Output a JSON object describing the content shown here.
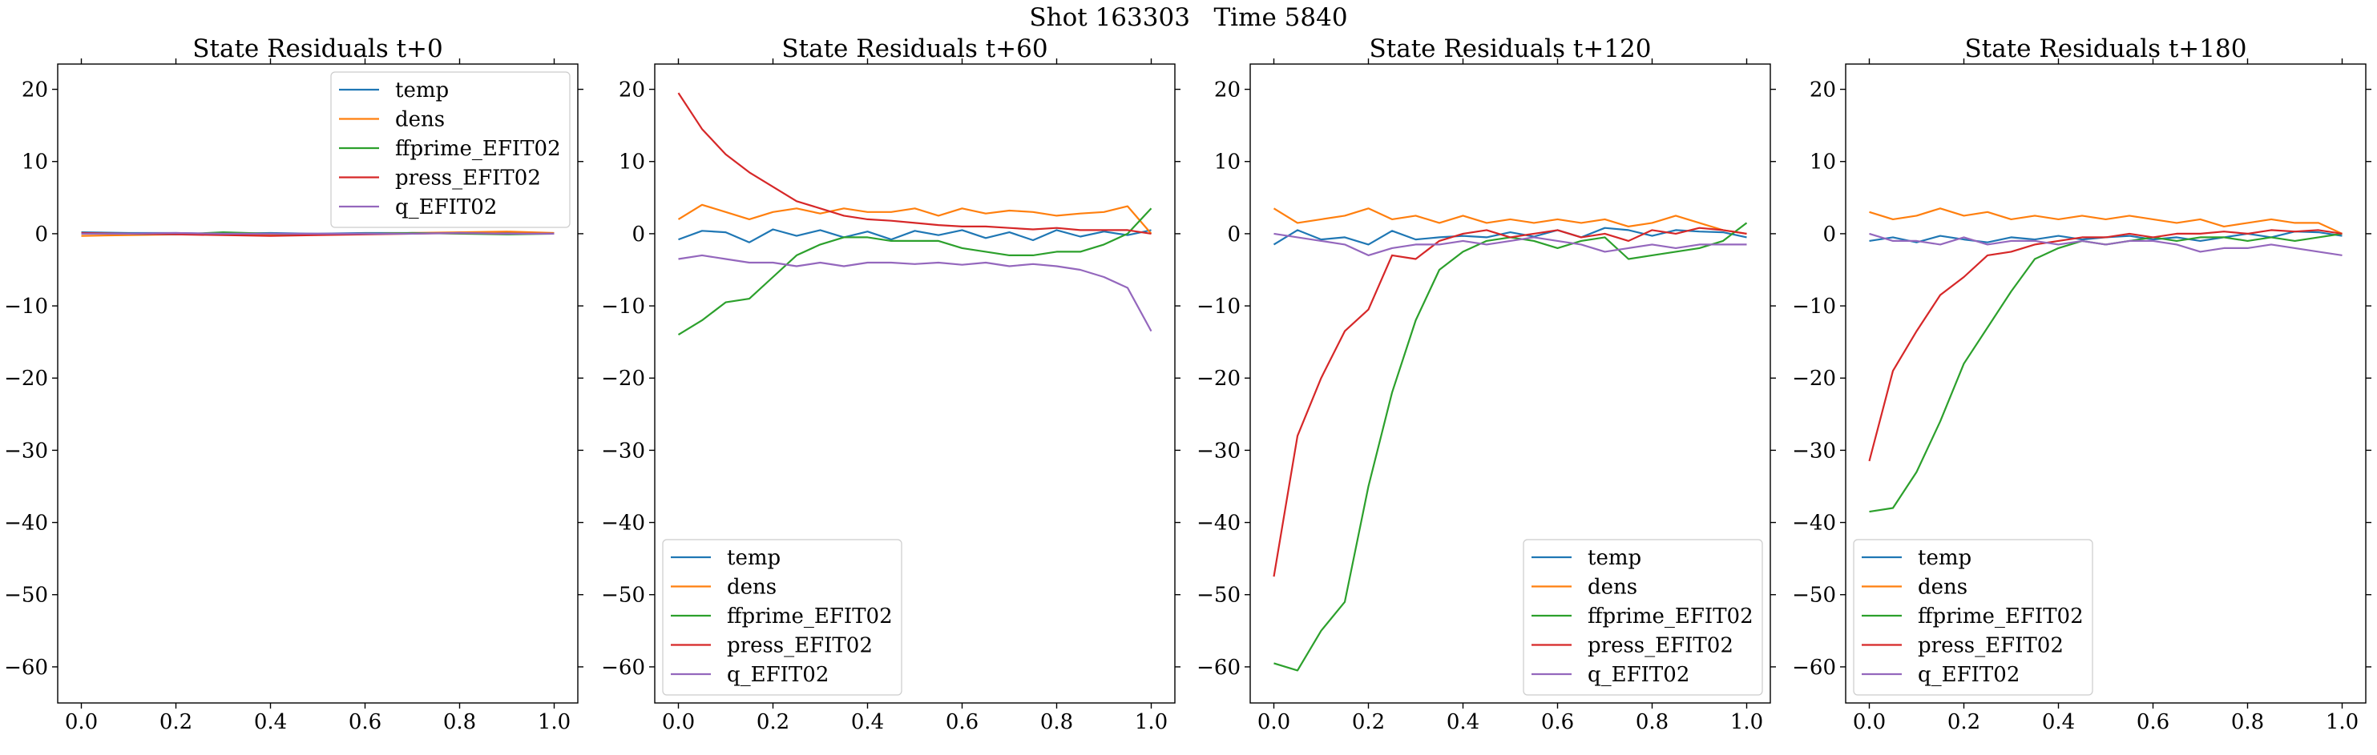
{
  "figure": {
    "suptitle": "Shot 163303   Time 5840"
  },
  "chart_data": [
    {
      "type": "line",
      "title": "State Residuals t+0",
      "xlabel": "",
      "ylabel": "",
      "xlim": [
        -0.05,
        1.05
      ],
      "ylim": [
        -65,
        23.5
      ],
      "xticks": [
        0.0,
        0.2,
        0.4,
        0.6,
        0.8,
        1.0
      ],
      "yticks": [
        20,
        10,
        0,
        -10,
        -20,
        -30,
        -40,
        -50,
        -60
      ],
      "legend_position": "upper right",
      "series": [
        {
          "name": "temp",
          "color": "#1f77b4",
          "x": [
            0,
            0.1,
            0.2,
            0.3,
            0.4,
            0.5,
            0.6,
            0.7,
            0.8,
            0.9,
            1.0
          ],
          "y": [
            0.2,
            0.1,
            0.1,
            0.0,
            0.1,
            0.0,
            0.1,
            0.1,
            0.1,
            0.2,
            0.0
          ]
        },
        {
          "name": "dens",
          "color": "#ff7f0e",
          "x": [
            0,
            0.1,
            0.2,
            0.3,
            0.4,
            0.5,
            0.6,
            0.7,
            0.8,
            0.9,
            1.0
          ],
          "y": [
            -0.3,
            -0.2,
            -0.1,
            -0.1,
            -0.2,
            -0.1,
            0.0,
            0.1,
            0.2,
            0.3,
            0.1
          ]
        },
        {
          "name": "ffprime_EFIT02",
          "color": "#2ca02c",
          "x": [
            0,
            0.1,
            0.2,
            0.3,
            0.4,
            0.5,
            0.6,
            0.7,
            0.8,
            0.9,
            1.0
          ],
          "y": [
            0.1,
            0.0,
            -0.1,
            0.2,
            0.0,
            -0.1,
            0.0,
            0.1,
            0.0,
            -0.1,
            0.0
          ]
        },
        {
          "name": "press_EFIT02",
          "color": "#d62728",
          "x": [
            0,
            0.1,
            0.2,
            0.3,
            0.4,
            0.5,
            0.6,
            0.7,
            0.8,
            0.9,
            1.0
          ],
          "y": [
            0.1,
            0.0,
            -0.1,
            -0.2,
            -0.3,
            -0.2,
            -0.1,
            0.0,
            0.1,
            0.0,
            0.0
          ]
        },
        {
          "name": "q_EFIT02",
          "color": "#9467bd",
          "x": [
            0,
            0.1,
            0.2,
            0.3,
            0.4,
            0.5,
            0.6,
            0.7,
            0.8,
            0.9,
            1.0
          ],
          "y": [
            0.0,
            0.0,
            0.1,
            0.0,
            0.0,
            0.0,
            0.0,
            0.0,
            0.1,
            0.0,
            0.0
          ]
        }
      ]
    },
    {
      "type": "line",
      "title": "State Residuals t+60",
      "xlabel": "",
      "ylabel": "",
      "xlim": [
        -0.05,
        1.05
      ],
      "ylim": [
        -65,
        23.5
      ],
      "xticks": [
        0.0,
        0.2,
        0.4,
        0.6,
        0.8,
        1.0
      ],
      "yticks": [
        20,
        10,
        0,
        -10,
        -20,
        -30,
        -40,
        -50,
        -60
      ],
      "legend_position": "lower left",
      "series": [
        {
          "name": "temp",
          "color": "#1f77b4",
          "x": [
            0,
            0.05,
            0.1,
            0.15,
            0.2,
            0.25,
            0.3,
            0.35,
            0.4,
            0.45,
            0.5,
            0.55,
            0.6,
            0.65,
            0.7,
            0.75,
            0.8,
            0.85,
            0.9,
            0.95,
            1.0
          ],
          "y": [
            -0.8,
            0.4,
            0.2,
            -1.2,
            0.6,
            -0.3,
            0.5,
            -0.5,
            0.3,
            -0.8,
            0.4,
            -0.2,
            0.5,
            -0.6,
            0.2,
            -0.9,
            0.5,
            -0.4,
            0.3,
            -0.2,
            0.5
          ]
        },
        {
          "name": "dens",
          "color": "#ff7f0e",
          "x": [
            0,
            0.05,
            0.1,
            0.15,
            0.2,
            0.25,
            0.3,
            0.35,
            0.4,
            0.45,
            0.5,
            0.55,
            0.6,
            0.65,
            0.7,
            0.75,
            0.8,
            0.85,
            0.9,
            0.95,
            1.0
          ],
          "y": [
            2.0,
            4.0,
            3.0,
            2.0,
            3.0,
            3.5,
            2.8,
            3.5,
            3.0,
            3.0,
            3.5,
            2.5,
            3.5,
            2.8,
            3.2,
            3.0,
            2.5,
            2.8,
            3.0,
            3.8,
            0.0
          ]
        },
        {
          "name": "ffprime_EFIT02",
          "color": "#2ca02c",
          "x": [
            0,
            0.05,
            0.1,
            0.15,
            0.2,
            0.25,
            0.3,
            0.35,
            0.4,
            0.45,
            0.5,
            0.55,
            0.6,
            0.65,
            0.7,
            0.75,
            0.8,
            0.85,
            0.9,
            0.95,
            1.0
          ],
          "y": [
            -14.0,
            -12.0,
            -9.5,
            -9.0,
            -6.0,
            -3.0,
            -1.5,
            -0.5,
            -0.5,
            -1.0,
            -1.0,
            -1.0,
            -2.0,
            -2.5,
            -3.0,
            -3.0,
            -2.5,
            -2.5,
            -1.5,
            0.0,
            3.5
          ]
        },
        {
          "name": "press_EFIT02",
          "color": "#d62728",
          "x": [
            0,
            0.05,
            0.1,
            0.15,
            0.2,
            0.25,
            0.3,
            0.35,
            0.4,
            0.45,
            0.5,
            0.55,
            0.6,
            0.65,
            0.7,
            0.75,
            0.8,
            0.85,
            0.9,
            0.95,
            1.0
          ],
          "y": [
            19.5,
            14.5,
            11.0,
            8.5,
            6.5,
            4.5,
            3.5,
            2.5,
            2.0,
            1.8,
            1.5,
            1.2,
            1.0,
            1.0,
            0.8,
            0.6,
            0.8,
            0.5,
            0.5,
            0.5,
            0.0
          ]
        },
        {
          "name": "q_EFIT02",
          "color": "#9467bd",
          "x": [
            0,
            0.05,
            0.1,
            0.15,
            0.2,
            0.25,
            0.3,
            0.35,
            0.4,
            0.45,
            0.5,
            0.55,
            0.6,
            0.65,
            0.7,
            0.75,
            0.8,
            0.85,
            0.9,
            0.95,
            1.0
          ],
          "y": [
            -3.5,
            -3.0,
            -3.5,
            -4.0,
            -4.0,
            -4.5,
            -4.0,
            -4.5,
            -4.0,
            -4.0,
            -4.2,
            -4.0,
            -4.3,
            -4.0,
            -4.5,
            -4.2,
            -4.5,
            -5.0,
            -6.0,
            -7.5,
            -13.5
          ]
        }
      ]
    },
    {
      "type": "line",
      "title": "State Residuals t+120",
      "xlabel": "",
      "ylabel": "",
      "xlim": [
        -0.05,
        1.05
      ],
      "ylim": [
        -65,
        23.5
      ],
      "xticks": [
        0.0,
        0.2,
        0.4,
        0.6,
        0.8,
        1.0
      ],
      "yticks": [
        20,
        10,
        0,
        -10,
        -20,
        -30,
        -40,
        -50,
        -60
      ],
      "legend_position": "lower right",
      "series": [
        {
          "name": "temp",
          "color": "#1f77b4",
          "x": [
            0,
            0.05,
            0.1,
            0.15,
            0.2,
            0.25,
            0.3,
            0.35,
            0.4,
            0.45,
            0.5,
            0.55,
            0.6,
            0.65,
            0.7,
            0.75,
            0.8,
            0.85,
            0.9,
            0.95,
            1.0
          ],
          "y": [
            -1.5,
            0.5,
            -0.8,
            -0.5,
            -1.5,
            0.4,
            -0.8,
            -0.5,
            -0.3,
            -0.5,
            0.2,
            -0.4,
            0.5,
            -0.5,
            0.8,
            0.5,
            -0.3,
            0.5,
            0.3,
            0.2,
            -0.5
          ]
        },
        {
          "name": "dens",
          "color": "#ff7f0e",
          "x": [
            0,
            0.05,
            0.1,
            0.15,
            0.2,
            0.25,
            0.3,
            0.35,
            0.4,
            0.45,
            0.5,
            0.55,
            0.6,
            0.65,
            0.7,
            0.75,
            0.8,
            0.85,
            0.9,
            0.95,
            1.0
          ],
          "y": [
            3.5,
            1.5,
            2.0,
            2.5,
            3.5,
            2.0,
            2.5,
            1.5,
            2.5,
            1.5,
            2.0,
            1.5,
            2.0,
            1.5,
            2.0,
            1.0,
            1.5,
            2.5,
            1.5,
            0.5,
            0.0
          ]
        },
        {
          "name": "ffprime_EFIT02",
          "color": "#2ca02c",
          "x": [
            0,
            0.05,
            0.1,
            0.15,
            0.2,
            0.25,
            0.3,
            0.35,
            0.4,
            0.45,
            0.5,
            0.55,
            0.6,
            0.65,
            0.7,
            0.75,
            0.8,
            0.85,
            0.9,
            0.95,
            1.0
          ],
          "y": [
            -59.5,
            -60.5,
            -55.0,
            -51.0,
            -35.0,
            -22.0,
            -12.0,
            -5.0,
            -2.5,
            -1.0,
            -0.5,
            -1.0,
            -2.0,
            -1.0,
            -0.5,
            -3.5,
            -3.0,
            -2.5,
            -2.0,
            -1.0,
            1.5
          ]
        },
        {
          "name": "press_EFIT02",
          "color": "#d62728",
          "x": [
            0,
            0.05,
            0.1,
            0.15,
            0.2,
            0.25,
            0.3,
            0.35,
            0.4,
            0.45,
            0.5,
            0.55,
            0.6,
            0.65,
            0.7,
            0.75,
            0.8,
            0.85,
            0.9,
            0.95,
            1.0
          ],
          "y": [
            -47.5,
            -28.0,
            -20.0,
            -13.5,
            -10.5,
            -3.0,
            -3.5,
            -1.0,
            0.0,
            0.5,
            -0.5,
            0.0,
            0.5,
            -0.5,
            0.0,
            -1.0,
            0.5,
            0.0,
            0.8,
            0.5,
            0.0
          ]
        },
        {
          "name": "q_EFIT02",
          "color": "#9467bd",
          "x": [
            0,
            0.05,
            0.1,
            0.15,
            0.2,
            0.25,
            0.3,
            0.35,
            0.4,
            0.45,
            0.5,
            0.55,
            0.6,
            0.65,
            0.7,
            0.75,
            0.8,
            0.85,
            0.9,
            0.95,
            1.0
          ],
          "y": [
            0.0,
            -0.5,
            -1.0,
            -1.5,
            -3.0,
            -2.0,
            -1.5,
            -1.5,
            -1.0,
            -1.5,
            -1.0,
            -0.5,
            -1.0,
            -1.5,
            -2.5,
            -2.0,
            -1.5,
            -2.0,
            -1.5,
            -1.5,
            -1.5
          ]
        }
      ]
    },
    {
      "type": "line",
      "title": "State Residuals t+180",
      "xlabel": "",
      "ylabel": "",
      "xlim": [
        -0.05,
        1.05
      ],
      "ylim": [
        -65,
        23.5
      ],
      "xticks": [
        0.0,
        0.2,
        0.4,
        0.6,
        0.8,
        1.0
      ],
      "yticks": [
        20,
        10,
        0,
        -10,
        -20,
        -30,
        -40,
        -50,
        -60
      ],
      "legend_position": "lower left",
      "series": [
        {
          "name": "temp",
          "color": "#1f77b4",
          "x": [
            0,
            0.05,
            0.1,
            0.15,
            0.2,
            0.25,
            0.3,
            0.35,
            0.4,
            0.45,
            0.5,
            0.55,
            0.6,
            0.65,
            0.7,
            0.75,
            0.8,
            0.85,
            0.9,
            0.95,
            1.0
          ],
          "y": [
            -1.0,
            -0.5,
            -1.2,
            -0.3,
            -0.8,
            -1.2,
            -0.5,
            -0.8,
            -0.3,
            -0.8,
            -0.5,
            -0.3,
            -0.8,
            -0.5,
            -1.0,
            -0.5,
            0.0,
            -0.5,
            0.3,
            0.2,
            -0.3
          ]
        },
        {
          "name": "dens",
          "color": "#ff7f0e",
          "x": [
            0,
            0.05,
            0.1,
            0.15,
            0.2,
            0.25,
            0.3,
            0.35,
            0.4,
            0.45,
            0.5,
            0.55,
            0.6,
            0.65,
            0.7,
            0.75,
            0.8,
            0.85,
            0.9,
            0.95,
            1.0
          ],
          "y": [
            3.0,
            2.0,
            2.5,
            3.5,
            2.5,
            3.0,
            2.0,
            2.5,
            2.0,
            2.5,
            2.0,
            2.5,
            2.0,
            1.5,
            2.0,
            1.0,
            1.5,
            2.0,
            1.5,
            1.5,
            0.0
          ]
        },
        {
          "name": "ffprime_EFIT02",
          "color": "#2ca02c",
          "x": [
            0,
            0.05,
            0.1,
            0.15,
            0.2,
            0.25,
            0.3,
            0.35,
            0.4,
            0.45,
            0.5,
            0.55,
            0.6,
            0.65,
            0.7,
            0.75,
            0.8,
            0.85,
            0.9,
            0.95,
            1.0
          ],
          "y": [
            -38.5,
            -38.0,
            -33.0,
            -26.0,
            -18.0,
            -13.0,
            -8.0,
            -3.5,
            -2.0,
            -1.0,
            -1.5,
            -1.0,
            -0.5,
            -1.0,
            -0.5,
            -0.5,
            -1.0,
            -0.5,
            -1.0,
            -0.5,
            0.0
          ]
        },
        {
          "name": "press_EFIT02",
          "color": "#d62728",
          "x": [
            0,
            0.05,
            0.1,
            0.15,
            0.2,
            0.25,
            0.3,
            0.35,
            0.4,
            0.45,
            0.5,
            0.55,
            0.6,
            0.65,
            0.7,
            0.75,
            0.8,
            0.85,
            0.9,
            0.95,
            1.0
          ],
          "y": [
            -31.5,
            -19.0,
            -13.5,
            -8.5,
            -6.0,
            -3.0,
            -2.5,
            -1.5,
            -1.0,
            -0.5,
            -0.5,
            0.0,
            -0.5,
            0.0,
            0.0,
            0.3,
            0.0,
            0.5,
            0.3,
            0.5,
            0.0
          ]
        },
        {
          "name": "q_EFIT02",
          "color": "#9467bd",
          "x": [
            0,
            0.05,
            0.1,
            0.15,
            0.2,
            0.25,
            0.3,
            0.35,
            0.4,
            0.45,
            0.5,
            0.55,
            0.6,
            0.65,
            0.7,
            0.75,
            0.8,
            0.85,
            0.9,
            0.95,
            1.0
          ],
          "y": [
            0.0,
            -1.0,
            -1.0,
            -1.5,
            -0.5,
            -1.5,
            -1.0,
            -1.0,
            -1.5,
            -1.0,
            -1.5,
            -1.0,
            -1.0,
            -1.5,
            -2.5,
            -2.0,
            -2.0,
            -1.5,
            -2.0,
            -2.5,
            -3.0
          ]
        }
      ]
    }
  ]
}
